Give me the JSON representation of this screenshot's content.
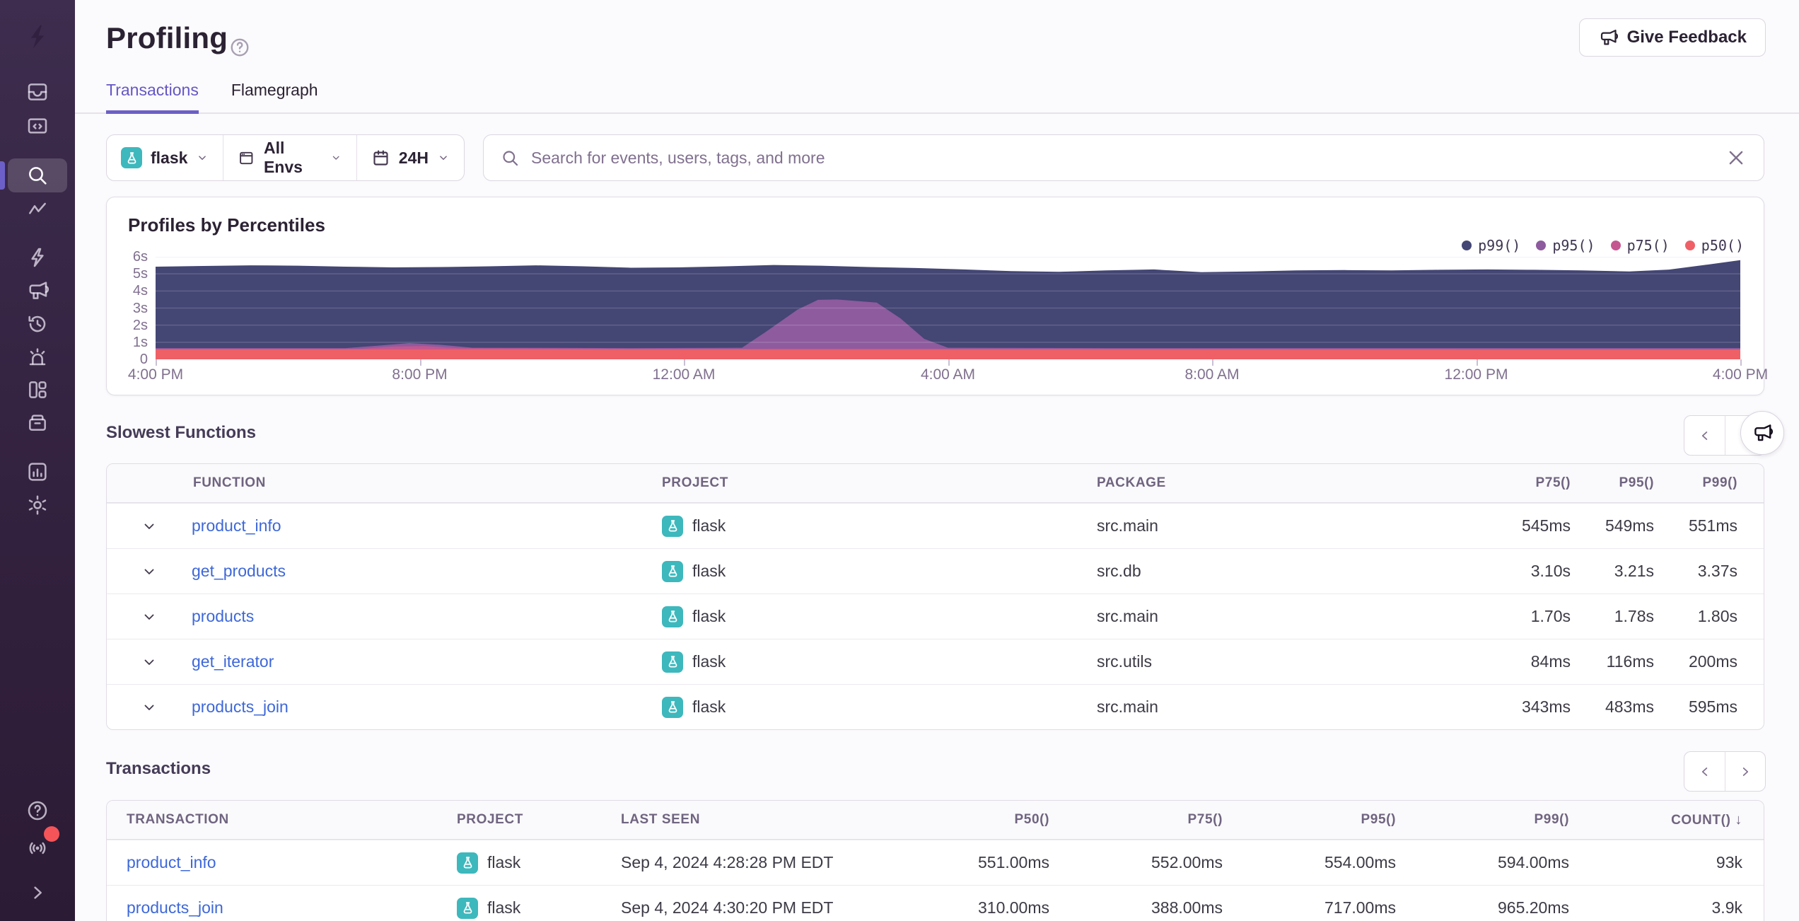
{
  "header": {
    "title": "Profiling",
    "feedback_label": "Give Feedback"
  },
  "tabs": {
    "items": [
      {
        "label": "Transactions"
      },
      {
        "label": "Flamegraph"
      }
    ],
    "active_index": 0
  },
  "filters": {
    "project_label": "flask",
    "env_label": "All Envs",
    "date_label": "24H",
    "search_placeholder": "Search for events, users, tags, and more"
  },
  "sidebar": {
    "items": [
      "issues",
      "projects",
      "explore",
      "metrics",
      "quick-start",
      "feedback",
      "replays",
      "alerts",
      "dashboards",
      "releases",
      "stats",
      "settings"
    ],
    "footer_items": [
      "help",
      "whats-new",
      "collapse"
    ]
  },
  "chart_data": {
    "type": "area",
    "title": "Profiles by Percentiles",
    "ylim": [
      0,
      6
    ],
    "unit": "seconds",
    "y_ticks": [
      "0",
      "1s",
      "2s",
      "3s",
      "4s",
      "5s",
      "6s"
    ],
    "x_ticks": [
      "4:00 PM",
      "8:00 PM",
      "12:00 AM",
      "4:00 AM",
      "8:00 AM",
      "12:00 PM",
      "4:00 PM"
    ],
    "grid": true,
    "legend_position": "top-right",
    "series": [
      {
        "name": "p99()",
        "color": "#444674",
        "points": [
          [
            0,
            5.42
          ],
          [
            0.03,
            5.46
          ],
          [
            0.06,
            5.5
          ],
          [
            0.09,
            5.48
          ],
          [
            0.12,
            5.42
          ],
          [
            0.15,
            5.38
          ],
          [
            0.18,
            5.4
          ],
          [
            0.21,
            5.44
          ],
          [
            0.24,
            5.5
          ],
          [
            0.27,
            5.44
          ],
          [
            0.3,
            5.36
          ],
          [
            0.33,
            5.38
          ],
          [
            0.36,
            5.44
          ],
          [
            0.39,
            5.52
          ],
          [
            0.42,
            5.48
          ],
          [
            0.45,
            5.4
          ],
          [
            0.48,
            5.34
          ],
          [
            0.51,
            5.26
          ],
          [
            0.54,
            5.16
          ],
          [
            0.57,
            5.12
          ],
          [
            0.6,
            5.2
          ],
          [
            0.63,
            5.26
          ],
          [
            0.66,
            5.1
          ],
          [
            0.69,
            5.14
          ],
          [
            0.72,
            5.2
          ],
          [
            0.75,
            5.22
          ],
          [
            0.78,
            5.2
          ],
          [
            0.81,
            5.24
          ],
          [
            0.84,
            5.26
          ],
          [
            0.87,
            5.24
          ],
          [
            0.9,
            5.2
          ],
          [
            0.93,
            5.14
          ],
          [
            0.955,
            5.25
          ],
          [
            0.98,
            5.55
          ],
          [
            1,
            5.8
          ]
        ]
      },
      {
        "name": "p95()",
        "color": "#8d5b9e",
        "points": [
          [
            0,
            0.66
          ],
          [
            0.12,
            0.66
          ],
          [
            0.14,
            0.8
          ],
          [
            0.16,
            0.95
          ],
          [
            0.18,
            0.85
          ],
          [
            0.2,
            0.68
          ],
          [
            0.3,
            0.66
          ],
          [
            0.37,
            0.68
          ],
          [
            0.385,
            1.6
          ],
          [
            0.405,
            2.9
          ],
          [
            0.418,
            3.48
          ],
          [
            0.43,
            3.5
          ],
          [
            0.455,
            3.32
          ],
          [
            0.47,
            2.4
          ],
          [
            0.485,
            1.2
          ],
          [
            0.5,
            0.68
          ],
          [
            0.6,
            0.66
          ],
          [
            0.8,
            0.66
          ],
          [
            1,
            0.66
          ]
        ]
      },
      {
        "name": "p75()",
        "color": "#c4578f",
        "points": [
          [
            0,
            0.62
          ],
          [
            0.13,
            0.62
          ],
          [
            0.15,
            0.75
          ],
          [
            0.17,
            0.78
          ],
          [
            0.19,
            0.66
          ],
          [
            0.3,
            0.62
          ],
          [
            0.6,
            0.62
          ],
          [
            1,
            0.6
          ]
        ]
      },
      {
        "name": "p50()",
        "color": "#ee6066",
        "points": [
          [
            0,
            0.58
          ],
          [
            0.2,
            0.58
          ],
          [
            0.4,
            0.57
          ],
          [
            0.6,
            0.57
          ],
          [
            0.8,
            0.57
          ],
          [
            1,
            0.57
          ]
        ]
      }
    ]
  },
  "slowest_functions": {
    "title": "Slowest Functions",
    "columns": [
      "FUNCTION",
      "PROJECT",
      "PACKAGE",
      "P75()",
      "P95()",
      "P99()"
    ],
    "rows": [
      {
        "function": "product_info",
        "project": "flask",
        "package": "src.main",
        "p75": "545ms",
        "p95": "549ms",
        "p99": "551ms"
      },
      {
        "function": "get_products",
        "project": "flask",
        "package": "src.db",
        "p75": "3.10s",
        "p95": "3.21s",
        "p99": "3.37s"
      },
      {
        "function": "products",
        "project": "flask",
        "package": "src.main",
        "p75": "1.70s",
        "p95": "1.78s",
        "p99": "1.80s"
      },
      {
        "function": "get_iterator",
        "project": "flask",
        "package": "src.utils",
        "p75": "84ms",
        "p95": "116ms",
        "p99": "200ms"
      },
      {
        "function": "products_join",
        "project": "flask",
        "package": "src.main",
        "p75": "343ms",
        "p95": "483ms",
        "p99": "595ms"
      }
    ]
  },
  "transactions": {
    "title": "Transactions",
    "columns": [
      "TRANSACTION",
      "PROJECT",
      "LAST SEEN",
      "P50()",
      "P75()",
      "P95()",
      "P99()",
      "COUNT()"
    ],
    "sort_indicator": "↓",
    "rows": [
      {
        "transaction": "product_info",
        "project": "flask",
        "last_seen": "Sep 4, 2024 4:28:28 PM EDT",
        "p50": "551.00ms",
        "p75": "552.00ms",
        "p95": "554.00ms",
        "p99": "594.00ms",
        "count": "93k"
      },
      {
        "transaction": "products_join",
        "project": "flask",
        "last_seen": "Sep 4, 2024 4:30:20 PM EDT",
        "p50": "310.00ms",
        "p75": "388.00ms",
        "p95": "717.00ms",
        "p99": "965.20ms",
        "count": "3.9k"
      }
    ]
  },
  "colors": {
    "accent": "#6c5fc7",
    "link": "#3e68d9",
    "project_teal": "#3db8bd",
    "badge_red": "#f55459",
    "sidebar_top": "#3e2d4e",
    "sidebar_bottom": "#2c1b34"
  }
}
